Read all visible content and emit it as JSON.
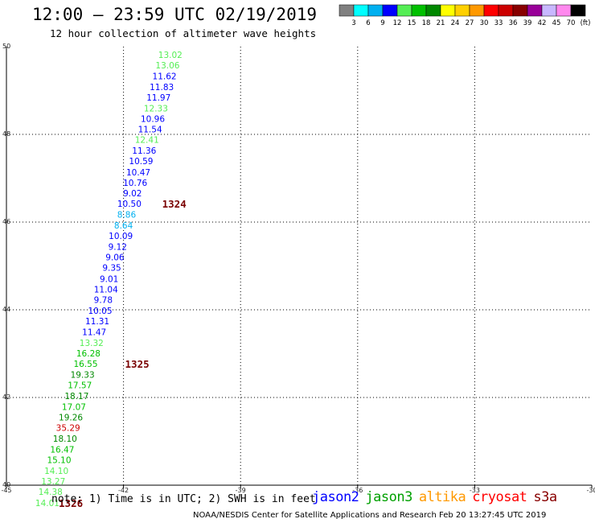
{
  "header": {
    "title": "12:00 – 23:59 UTC 02/19/2019",
    "subtitle": "12 hour collection of altimeter wave heights"
  },
  "color_scale": {
    "colors": [
      "#808080",
      "#00ffff",
      "#00b0f0",
      "#0000ff",
      "#55ee55",
      "#00c000",
      "#008800",
      "#ffff00",
      "#ffd000",
      "#ff9900",
      "#ff0000",
      "#cc0000",
      "#880000",
      "#990099",
      "#c8b8ff",
      "#ff88ee",
      "#000000"
    ],
    "labels": [
      "3",
      "6",
      "9",
      "12",
      "15",
      "18",
      "21",
      "24",
      "27",
      "30",
      "33",
      "36",
      "39",
      "42",
      "45",
      "70",
      "(ft)"
    ]
  },
  "chart_data": {
    "type": "scatter",
    "title": "12:00 – 23:59 UTC 02/19/2019",
    "subtitle": "12 hour collection of altimeter wave heights",
    "xlim": [
      -45,
      -30
    ],
    "ylim": [
      40,
      50
    ],
    "x_ticks": [
      "-45",
      "-42",
      "-39",
      "-36",
      "-33",
      "-30"
    ],
    "y_ticks": [
      "40",
      "42",
      "44",
      "46",
      "48",
      "50"
    ],
    "grid": true,
    "points": [
      {
        "x": -40.8,
        "y": 49.82,
        "v": "13.02",
        "c": "#55ee55"
      },
      {
        "x": -40.87,
        "y": 49.58,
        "v": "13.06",
        "c": "#55ee55"
      },
      {
        "x": -40.95,
        "y": 49.33,
        "v": "11.62",
        "c": "#0000ff"
      },
      {
        "x": -41.02,
        "y": 49.08,
        "v": "11.83",
        "c": "#0000ff"
      },
      {
        "x": -41.1,
        "y": 48.84,
        "v": "11.97",
        "c": "#0000ff"
      },
      {
        "x": -41.17,
        "y": 48.6,
        "v": "12.33",
        "c": "#55ee55"
      },
      {
        "x": -41.25,
        "y": 48.36,
        "v": "10.96",
        "c": "#0000ff"
      },
      {
        "x": -41.32,
        "y": 48.12,
        "v": "11.54",
        "c": "#0000ff"
      },
      {
        "x": -41.4,
        "y": 47.88,
        "v": "12.41",
        "c": "#55ee55"
      },
      {
        "x": -41.47,
        "y": 47.63,
        "v": "11.36",
        "c": "#0000ff"
      },
      {
        "x": -41.55,
        "y": 47.39,
        "v": "10.59",
        "c": "#0000ff"
      },
      {
        "x": -41.62,
        "y": 47.14,
        "v": "10.47",
        "c": "#0000ff"
      },
      {
        "x": -41.7,
        "y": 46.9,
        "v": "10.76",
        "c": "#0000ff"
      },
      {
        "x": -41.77,
        "y": 46.66,
        "v": "9.02",
        "c": "#0000ff"
      },
      {
        "x": -41.85,
        "y": 46.42,
        "v": "10.50",
        "c": "#0000ff"
      },
      {
        "x": -41.92,
        "y": 46.17,
        "v": "8.86",
        "c": "#00b0f0"
      },
      {
        "x": -42.0,
        "y": 45.93,
        "v": "8.64",
        "c": "#00b0f0"
      },
      {
        "x": -42.07,
        "y": 45.69,
        "v": "10.09",
        "c": "#0000ff"
      },
      {
        "x": -42.15,
        "y": 45.44,
        "v": "9.12",
        "c": "#0000ff"
      },
      {
        "x": -42.22,
        "y": 45.2,
        "v": "9.06",
        "c": "#0000ff"
      },
      {
        "x": -42.3,
        "y": 44.96,
        "v": "9.35",
        "c": "#0000ff"
      },
      {
        "x": -42.37,
        "y": 44.71,
        "v": "9.01",
        "c": "#0000ff"
      },
      {
        "x": -42.45,
        "y": 44.47,
        "v": "11.04",
        "c": "#0000ff"
      },
      {
        "x": -42.52,
        "y": 44.23,
        "v": "9.78",
        "c": "#0000ff"
      },
      {
        "x": -42.6,
        "y": 43.98,
        "v": "10.05",
        "c": "#0000ff"
      },
      {
        "x": -42.67,
        "y": 43.74,
        "v": "11.31",
        "c": "#0000ff"
      },
      {
        "x": -42.75,
        "y": 43.5,
        "v": "11.47",
        "c": "#0000ff"
      },
      {
        "x": -42.82,
        "y": 43.25,
        "v": "13.32",
        "c": "#55ee55"
      },
      {
        "x": -42.9,
        "y": 43.01,
        "v": "16.28",
        "c": "#00c000"
      },
      {
        "x": -42.97,
        "y": 42.77,
        "v": "16.55",
        "c": "#00c000"
      },
      {
        "x": -43.05,
        "y": 42.52,
        "v": "19.33",
        "c": "#008800"
      },
      {
        "x": -43.12,
        "y": 42.28,
        "v": "17.57",
        "c": "#00c000"
      },
      {
        "x": -43.2,
        "y": 42.04,
        "v": "18.17",
        "c": "#008800"
      },
      {
        "x": -43.27,
        "y": 41.79,
        "v": "17.07",
        "c": "#00c000"
      },
      {
        "x": -43.35,
        "y": 41.55,
        "v": "19.26",
        "c": "#008800"
      },
      {
        "x": -43.42,
        "y": 41.31,
        "v": "35.29",
        "c": "#cc0000"
      },
      {
        "x": -43.5,
        "y": 41.06,
        "v": "18.10",
        "c": "#008800"
      },
      {
        "x": -43.57,
        "y": 40.82,
        "v": "16.47",
        "c": "#00c000"
      },
      {
        "x": -43.65,
        "y": 40.58,
        "v": "15.10",
        "c": "#00c000"
      },
      {
        "x": -43.72,
        "y": 40.33,
        "v": "14.10",
        "c": "#55ee55"
      },
      {
        "x": -43.8,
        "y": 40.09,
        "v": "13.27",
        "c": "#55ee55"
      },
      {
        "x": -43.87,
        "y": 39.85,
        "v": "14.38",
        "c": "#55ee55"
      },
      {
        "x": -43.95,
        "y": 39.6,
        "v": "14.01",
        "c": "#55ee55"
      }
    ],
    "pass_labels": [
      {
        "x": -40.7,
        "y": 46.42,
        "label": "1324"
      },
      {
        "x": -41.65,
        "y": 42.77,
        "label": "1325"
      },
      {
        "x": -43.35,
        "y": 39.6,
        "label": "1326"
      }
    ]
  },
  "footer": {
    "note": "note:  1) Time is in UTC; 2) SWH is in feet",
    "satellites": [
      {
        "name": "jason2",
        "color": "#0000ff"
      },
      {
        "name": "jason3",
        "color": "#00a000"
      },
      {
        "name": "altika",
        "color": "#ff9900"
      },
      {
        "name": "cryosat",
        "color": "#ff0000"
      },
      {
        "name": "s3a",
        "color": "#880000"
      }
    ],
    "credit": "NOAA/NESDIS Center for Satellite Applications and Research    Feb 20 13:27:45 UTC 2019"
  }
}
